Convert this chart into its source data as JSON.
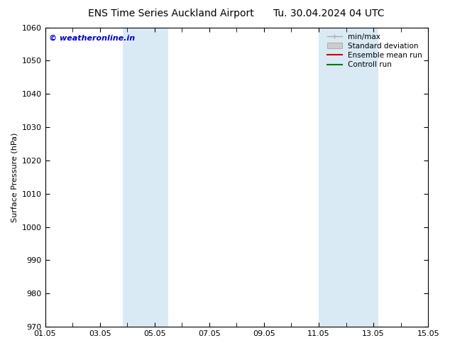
{
  "title": "ENS Time Series Auckland Airport",
  "date_str": "Tu. 30.04.2024 04 UTC",
  "ylabel": "Surface Pressure (hPa)",
  "ylim": [
    970,
    1060
  ],
  "yticks": [
    970,
    980,
    990,
    1000,
    1010,
    1020,
    1030,
    1040,
    1050,
    1060
  ],
  "x_start_day": 1,
  "x_end_day": 15,
  "xtick_labeled_days": [
    1,
    3,
    5,
    7,
    9,
    11,
    13,
    15
  ],
  "xtick_labels": [
    "01.05",
    "03.05",
    "05.05",
    "07.05",
    "09.05",
    "11.05",
    "13.05",
    "15.05"
  ],
  "shaded_bands": [
    {
      "x_start": 3.833,
      "x_end": 5.5,
      "color": "#daeaf5"
    },
    {
      "x_start": 11.0,
      "x_end": 13.167,
      "color": "#daeaf5"
    }
  ],
  "watermark": "© weatheronline.in",
  "watermark_color": "#0000bb",
  "bg_color": "#ffffff",
  "plot_bg_color": "#ffffff",
  "title_fontsize": 10,
  "axis_label_fontsize": 8,
  "tick_fontsize": 8,
  "legend_fontsize": 7.5,
  "minmax_color": "#aaaaaa",
  "std_color": "#cccccc",
  "ensemble_color": "#cc0000",
  "control_color": "#007700"
}
